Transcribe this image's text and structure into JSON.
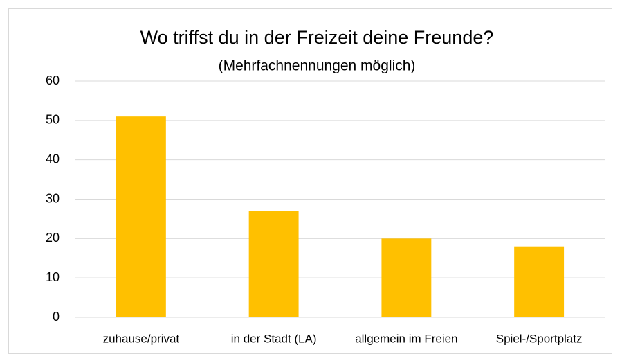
{
  "chart_data": {
    "type": "bar",
    "title": "Wo triffst du in der Freizeit deine Freunde?",
    "subtitle": "(Mehrfachnennungen möglich)",
    "categories": [
      "zuhause/privat",
      "in der Stadt (LA)",
      "allgemein im Freien",
      "Spiel-/Sportplatz"
    ],
    "values": [
      51,
      27,
      20,
      18
    ],
    "color": "#ffc000",
    "ylim": [
      0,
      60
    ],
    "yticks": [
      0,
      10,
      20,
      30,
      40,
      50,
      60
    ],
    "grid": true
  }
}
